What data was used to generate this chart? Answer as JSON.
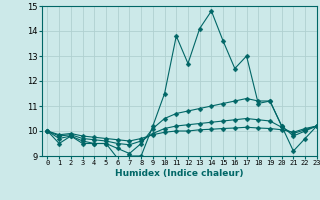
{
  "xlabel": "Humidex (Indice chaleur)",
  "ylabel": "",
  "xlim": [
    -0.5,
    23
  ],
  "ylim": [
    9,
    15
  ],
  "yticks": [
    9,
    10,
    11,
    12,
    13,
    14,
    15
  ],
  "xticks": [
    0,
    1,
    2,
    3,
    4,
    5,
    6,
    7,
    8,
    9,
    10,
    11,
    12,
    13,
    14,
    15,
    16,
    17,
    18,
    19,
    20,
    21,
    22,
    23
  ],
  "bg_color": "#cce9e9",
  "grid_color": "#b0d0d0",
  "line_color": "#006666",
  "lines": [
    [
      10.0,
      9.5,
      9.8,
      9.5,
      9.5,
      9.5,
      8.9,
      9.0,
      9.0,
      10.2,
      11.5,
      13.8,
      12.7,
      14.1,
      14.8,
      13.6,
      12.5,
      13.0,
      11.1,
      11.2,
      10.2,
      9.2,
      9.7,
      10.2
    ],
    [
      10.0,
      9.7,
      9.8,
      9.6,
      9.5,
      9.5,
      9.3,
      9.1,
      9.5,
      10.1,
      10.5,
      10.7,
      10.8,
      10.9,
      11.0,
      11.1,
      11.2,
      11.3,
      11.2,
      11.2,
      10.2,
      9.8,
      10.0,
      10.2
    ],
    [
      10.0,
      9.8,
      9.85,
      9.7,
      9.65,
      9.6,
      9.5,
      9.45,
      9.6,
      9.9,
      10.1,
      10.2,
      10.25,
      10.3,
      10.35,
      10.4,
      10.45,
      10.5,
      10.45,
      10.4,
      10.15,
      9.9,
      10.05,
      10.2
    ],
    [
      10.0,
      9.85,
      9.9,
      9.8,
      9.75,
      9.7,
      9.65,
      9.6,
      9.7,
      9.85,
      9.95,
      10.0,
      10.0,
      10.05,
      10.07,
      10.1,
      10.12,
      10.15,
      10.12,
      10.1,
      10.05,
      9.95,
      10.1,
      10.2
    ]
  ]
}
